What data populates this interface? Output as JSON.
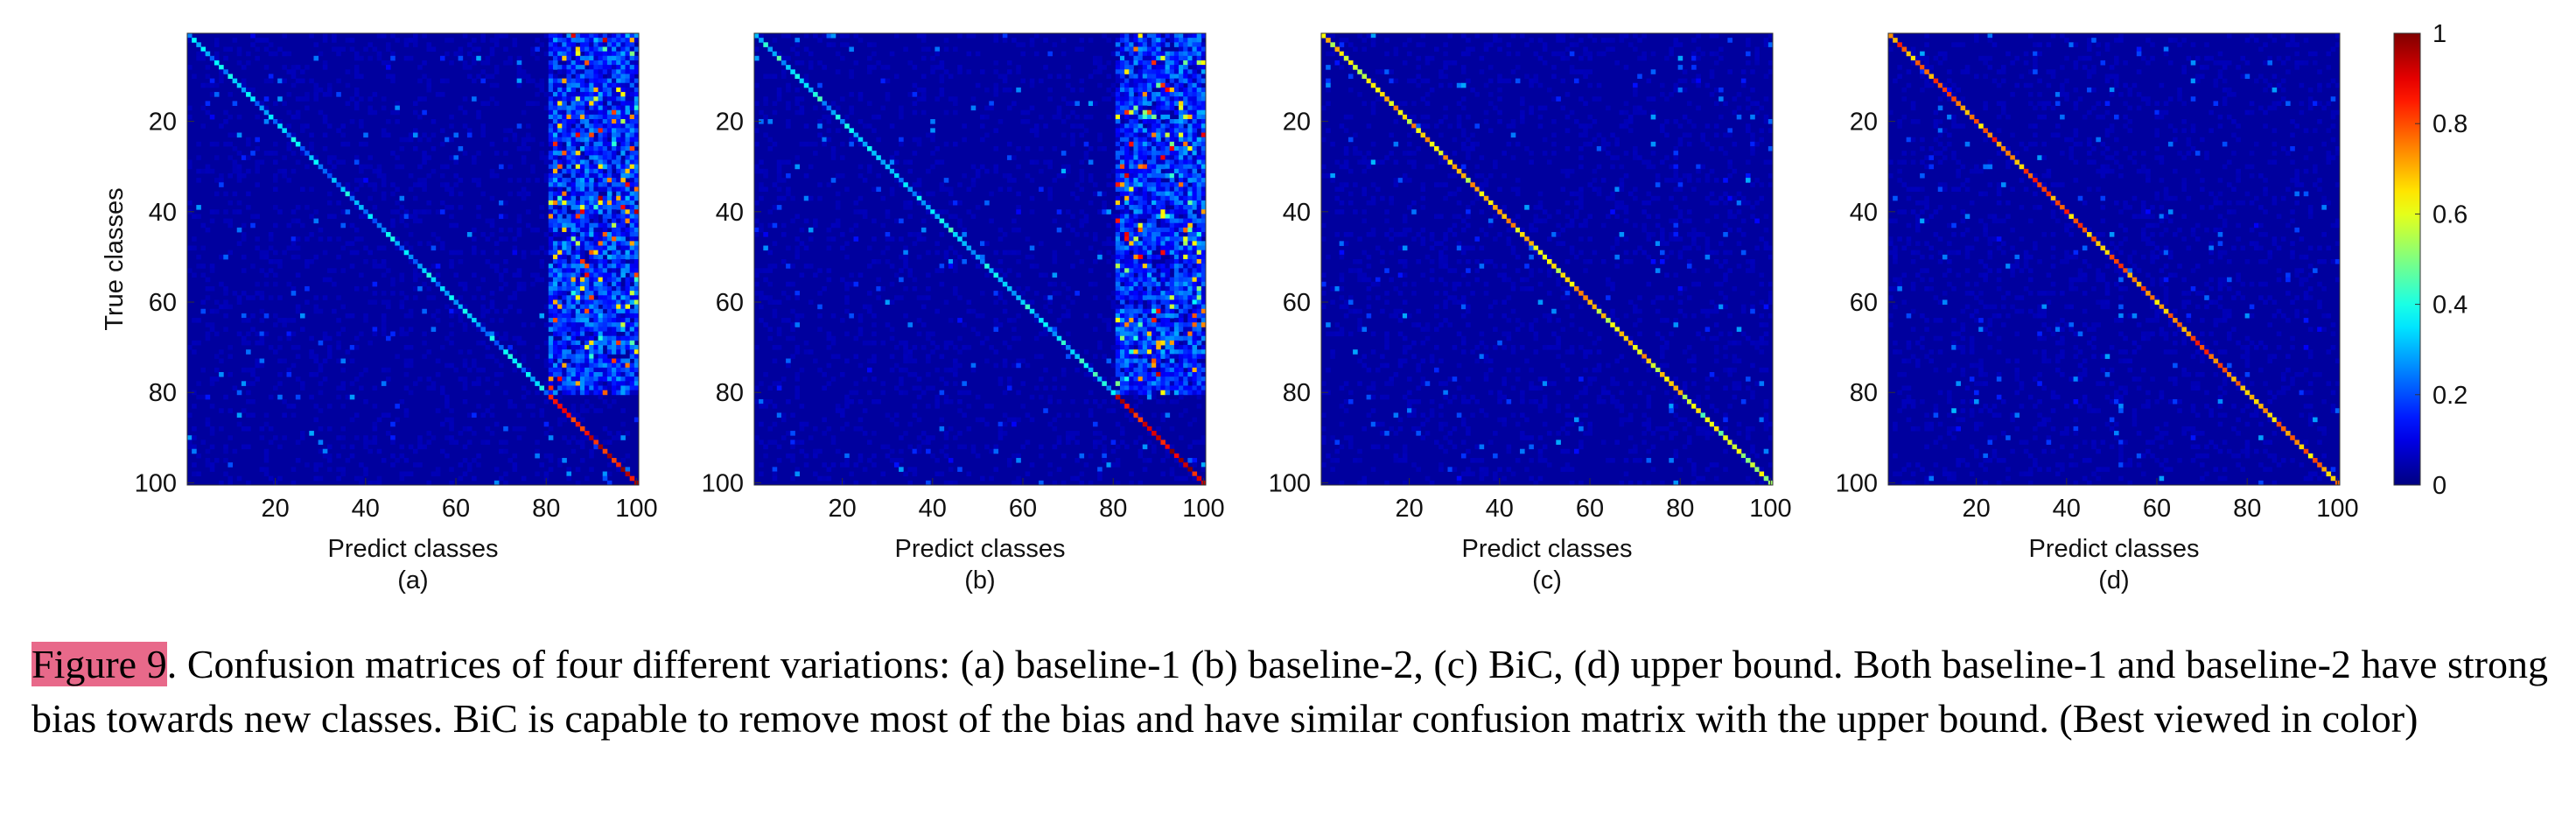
{
  "chart_data": [
    {
      "type": "heatmap",
      "variant": "baseline-1",
      "panel_label": "(a)",
      "xlabel": "Predict classes",
      "ylabel": "True classes",
      "xticks": [
        20,
        40,
        60,
        80,
        100
      ],
      "yticks": [
        20,
        40,
        60,
        80,
        100
      ],
      "xlim": [
        1,
        100
      ],
      "ylim": [
        1,
        100
      ],
      "num_classes": 100,
      "diagonal_old_classes_1_80": 0.3,
      "diagonal_new_classes_81_100": 0.9,
      "bias_region_columns": [
        81,
        100
      ]
    },
    {
      "type": "heatmap",
      "variant": "baseline-2",
      "panel_label": "(b)",
      "xlabel": "Predict classes",
      "ylabel": "",
      "xticks": [
        20,
        40,
        60,
        80,
        100
      ],
      "yticks": [
        20,
        40,
        60,
        80,
        100
      ],
      "xlim": [
        1,
        100
      ],
      "ylim": [
        1,
        100
      ],
      "num_classes": 100,
      "diagonal_old_classes_1_80": 0.35,
      "diagonal_new_classes_81_100": 0.9,
      "bias_region_columns": [
        81,
        100
      ]
    },
    {
      "type": "heatmap",
      "variant": "BiC",
      "panel_label": "(c)",
      "xlabel": "Predict classes",
      "ylabel": "",
      "xticks": [
        20,
        40,
        60,
        80,
        100
      ],
      "yticks": [
        20,
        40,
        60,
        80,
        100
      ],
      "xlim": [
        1,
        100
      ],
      "ylim": [
        1,
        100
      ],
      "num_classes": 100,
      "diagonal_old_classes_1_80": 0.65,
      "diagonal_new_classes_81_100": 0.55,
      "bias_region_columns": []
    },
    {
      "type": "heatmap",
      "variant": "upper bound",
      "panel_label": "(d)",
      "xlabel": "Predict classes",
      "ylabel": "",
      "xticks": [
        20,
        40,
        60,
        80,
        100
      ],
      "yticks": [
        20,
        40,
        60,
        80,
        100
      ],
      "xlim": [
        1,
        100
      ],
      "ylim": [
        1,
        100
      ],
      "num_classes": 100,
      "diagonal_old_classes_1_80": 0.75,
      "diagonal_new_classes_81_100": 0.7,
      "bias_region_columns": []
    }
  ],
  "colorbar": {
    "colormap": "jet",
    "range": [
      0,
      1
    ],
    "ticks": [
      "1",
      "0.8",
      "0.6",
      "0.4",
      "0.2",
      "0"
    ]
  },
  "caption": {
    "label": "Figure 9",
    "text": ". Confusion matrices of four different variations: (a) baseline-1 (b) baseline-2, (c) BiC, (d) upper bound.  Both baseline-1 and baseline-2 have strong bias towards new classes.  BiC is capable to remove most of the bias and have similar confusion matrix with the upper bound. (Best viewed in color)"
  }
}
